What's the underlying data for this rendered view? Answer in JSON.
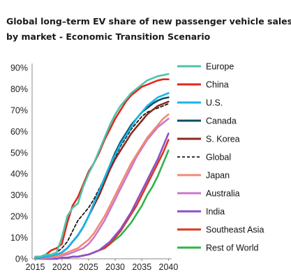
{
  "chart_data": {
    "type": "line",
    "title_line1": "Global long–term EV share of new passenger vehicle sales",
    "title_line2": "by market  -  Economic Transition Scenario",
    "xlabel": "",
    "ylabel": "",
    "x_ticks": [
      "2015",
      "2020",
      "2025",
      "2030",
      "2035",
      "2040"
    ],
    "y_ticks": [
      "0%",
      "10%",
      "20%",
      "30%",
      "40%",
      "50%",
      "60%",
      "70%",
      "80%",
      "90%"
    ],
    "xlim": [
      2014.4,
      2040.6
    ],
    "ylim": [
      0,
      90
    ],
    "grid": false,
    "legend_position": "right",
    "series": [
      {
        "name": "Europe",
        "color": "#4cc4a9",
        "dash": "solid",
        "x": [
          2015,
          2016,
          2017,
          2018,
          2019,
          2020,
          2021,
          2022,
          2023,
          2024,
          2025,
          2026,
          2027,
          2028,
          2029,
          2030,
          2031,
          2032,
          2033,
          2034,
          2035,
          2036,
          2037,
          2038,
          2039,
          2040
        ],
        "y": [
          1,
          1,
          2,
          2,
          3,
          10,
          20,
          24,
          26,
          34,
          40,
          45,
          51,
          57,
          63,
          68,
          72,
          75,
          78,
          80,
          82,
          84,
          85,
          86,
          86.5,
          87
        ]
      },
      {
        "name": "China",
        "color": "#e2261c",
        "dash": "solid",
        "x": [
          2015,
          2016,
          2017,
          2018,
          2019,
          2020,
          2021,
          2022,
          2023,
          2024,
          2025,
          2026,
          2027,
          2028,
          2029,
          2030,
          2031,
          2032,
          2033,
          2034,
          2035,
          2036,
          2037,
          2038,
          2039,
          2040
        ],
        "y": [
          1,
          1,
          2,
          4,
          5,
          7,
          17,
          25,
          29,
          35,
          41,
          45,
          50,
          56,
          61,
          66,
          70,
          74,
          77,
          79,
          81,
          82,
          83,
          84,
          84.5,
          84.5
        ]
      },
      {
        "name": "U.S.",
        "color": "#18b4ea",
        "dash": "solid",
        "x": [
          2015,
          2016,
          2017,
          2018,
          2019,
          2020,
          2021,
          2022,
          2023,
          2024,
          2025,
          2026,
          2027,
          2028,
          2029,
          2030,
          2031,
          2032,
          2033,
          2034,
          2035,
          2036,
          2037,
          2038,
          2039,
          2040
        ],
        "y": [
          0.5,
          0.5,
          1,
          1.5,
          2,
          3,
          5,
          8,
          11,
          15,
          20,
          26,
          32,
          38,
          44,
          49,
          54,
          58,
          62,
          66,
          69,
          72,
          74,
          76,
          77,
          78
        ]
      },
      {
        "name": "Canada",
        "color": "#0f4c63",
        "dash": "solid",
        "x": [
          2015,
          2016,
          2017,
          2018,
          2019,
          2020,
          2021,
          2022,
          2023,
          2024,
          2025,
          2026,
          2027,
          2028,
          2029,
          2030,
          2031,
          2032,
          2033,
          2034,
          2035,
          2036,
          2037,
          2038,
          2039,
          2040
        ],
        "y": [
          0.5,
          0.5,
          1,
          1.5,
          2,
          3,
          5,
          8,
          11,
          15,
          20,
          26,
          32,
          38,
          44,
          50,
          55,
          59,
          63,
          66,
          69,
          71,
          73,
          74.5,
          75.5,
          76
        ]
      },
      {
        "name": "S. Korea",
        "color": "#8a2a1c",
        "dash": "solid",
        "x": [
          2015,
          2016,
          2017,
          2018,
          2019,
          2020,
          2021,
          2022,
          2023,
          2024,
          2025,
          2026,
          2027,
          2028,
          2029,
          2030,
          2031,
          2032,
          2033,
          2034,
          2035,
          2036,
          2037,
          2038,
          2039,
          2040
        ],
        "y": [
          0.5,
          0.5,
          1,
          1.5,
          2,
          3,
          5,
          8,
          11,
          15,
          20,
          25,
          30,
          36,
          42,
          47,
          51,
          55,
          59,
          62,
          65,
          68,
          70,
          72,
          73,
          74
        ]
      },
      {
        "name": "Global",
        "color": "#1a1a1a",
        "dash": "dashed",
        "x": [
          2015,
          2016,
          2017,
          2018,
          2019,
          2020,
          2021,
          2022,
          2023,
          2024,
          2025,
          2026,
          2027,
          2028,
          2029,
          2030,
          2031,
          2032,
          2033,
          2034,
          2035,
          2036,
          2037,
          2038,
          2039,
          2040
        ],
        "y": [
          0.5,
          0.5,
          1,
          2,
          3,
          5,
          8,
          13,
          18,
          21,
          24,
          28,
          33,
          38,
          43,
          48,
          53,
          57,
          61,
          64,
          67,
          69,
          70,
          71,
          72,
          73
        ]
      },
      {
        "name": "Japan",
        "color": "#f28a75",
        "dash": "solid",
        "x": [
          2015,
          2016,
          2017,
          2018,
          2019,
          2020,
          2021,
          2022,
          2023,
          2024,
          2025,
          2026,
          2027,
          2028,
          2029,
          2030,
          2031,
          2032,
          2033,
          2034,
          2035,
          2036,
          2037,
          2038,
          2039,
          2040
        ],
        "y": [
          0.5,
          0.5,
          0.5,
          1,
          1,
          2,
          3,
          4,
          5,
          7,
          9,
          12,
          16,
          20,
          25,
          30,
          35,
          40,
          45,
          49,
          53,
          57,
          60,
          63,
          66,
          68
        ]
      },
      {
        "name": "Australia",
        "color": "#c878c8",
        "dash": "solid",
        "x": [
          2015,
          2016,
          2017,
          2018,
          2019,
          2020,
          2021,
          2022,
          2023,
          2024,
          2025,
          2026,
          2027,
          2028,
          2029,
          2030,
          2031,
          2032,
          2033,
          2034,
          2035,
          2036,
          2037,
          2038,
          2039,
          2040
        ],
        "y": [
          0,
          0,
          0.5,
          0.5,
          1,
          1.5,
          2,
          3,
          4,
          5,
          7,
          10,
          14,
          18,
          23,
          28,
          33,
          38,
          43,
          48,
          52,
          56,
          59,
          62,
          64,
          66
        ]
      },
      {
        "name": "India",
        "color": "#8e4fc9",
        "dash": "solid",
        "x": [
          2015,
          2016,
          2017,
          2018,
          2019,
          2020,
          2021,
          2022,
          2023,
          2024,
          2025,
          2026,
          2027,
          2028,
          2029,
          2030,
          2031,
          2032,
          2033,
          2034,
          2035,
          2036,
          2037,
          2038,
          2039,
          2040
        ],
        "y": [
          0,
          0,
          0,
          0,
          0,
          0.5,
          0.5,
          1,
          1,
          1.5,
          2,
          3,
          4,
          6,
          8,
          11,
          14,
          18,
          22,
          27,
          32,
          37,
          42,
          47,
          53,
          59
        ]
      },
      {
        "name": "Southeast Asia",
        "color": "#d83822",
        "dash": "solid",
        "x": [
          2015,
          2016,
          2017,
          2018,
          2019,
          2020,
          2021,
          2022,
          2023,
          2024,
          2025,
          2026,
          2027,
          2028,
          2029,
          2030,
          2031,
          2032,
          2033,
          2034,
          2035,
          2036,
          2037,
          2038,
          2039,
          2040
        ],
        "y": [
          0,
          0,
          0,
          0,
          0,
          0.5,
          0.5,
          1,
          1,
          1.5,
          2,
          3,
          4,
          5,
          7,
          10,
          13,
          17,
          21,
          25,
          30,
          35,
          40,
          45,
          50,
          56
        ]
      },
      {
        "name": "Rest of World",
        "color": "#2fb44a",
        "dash": "solid",
        "x": [
          2015,
          2016,
          2017,
          2018,
          2019,
          2020,
          2021,
          2022,
          2023,
          2024,
          2025,
          2026,
          2027,
          2028,
          2029,
          2030,
          2031,
          2032,
          2033,
          2034,
          2035,
          2036,
          2037,
          2038,
          2039,
          2040
        ],
        "y": [
          0,
          0,
          0,
          0,
          0,
          0.5,
          0.5,
          1,
          1,
          1.5,
          2,
          3,
          4,
          5,
          7,
          9,
          11,
          14,
          17,
          21,
          25,
          30,
          34,
          39,
          45,
          51
        ]
      }
    ]
  }
}
